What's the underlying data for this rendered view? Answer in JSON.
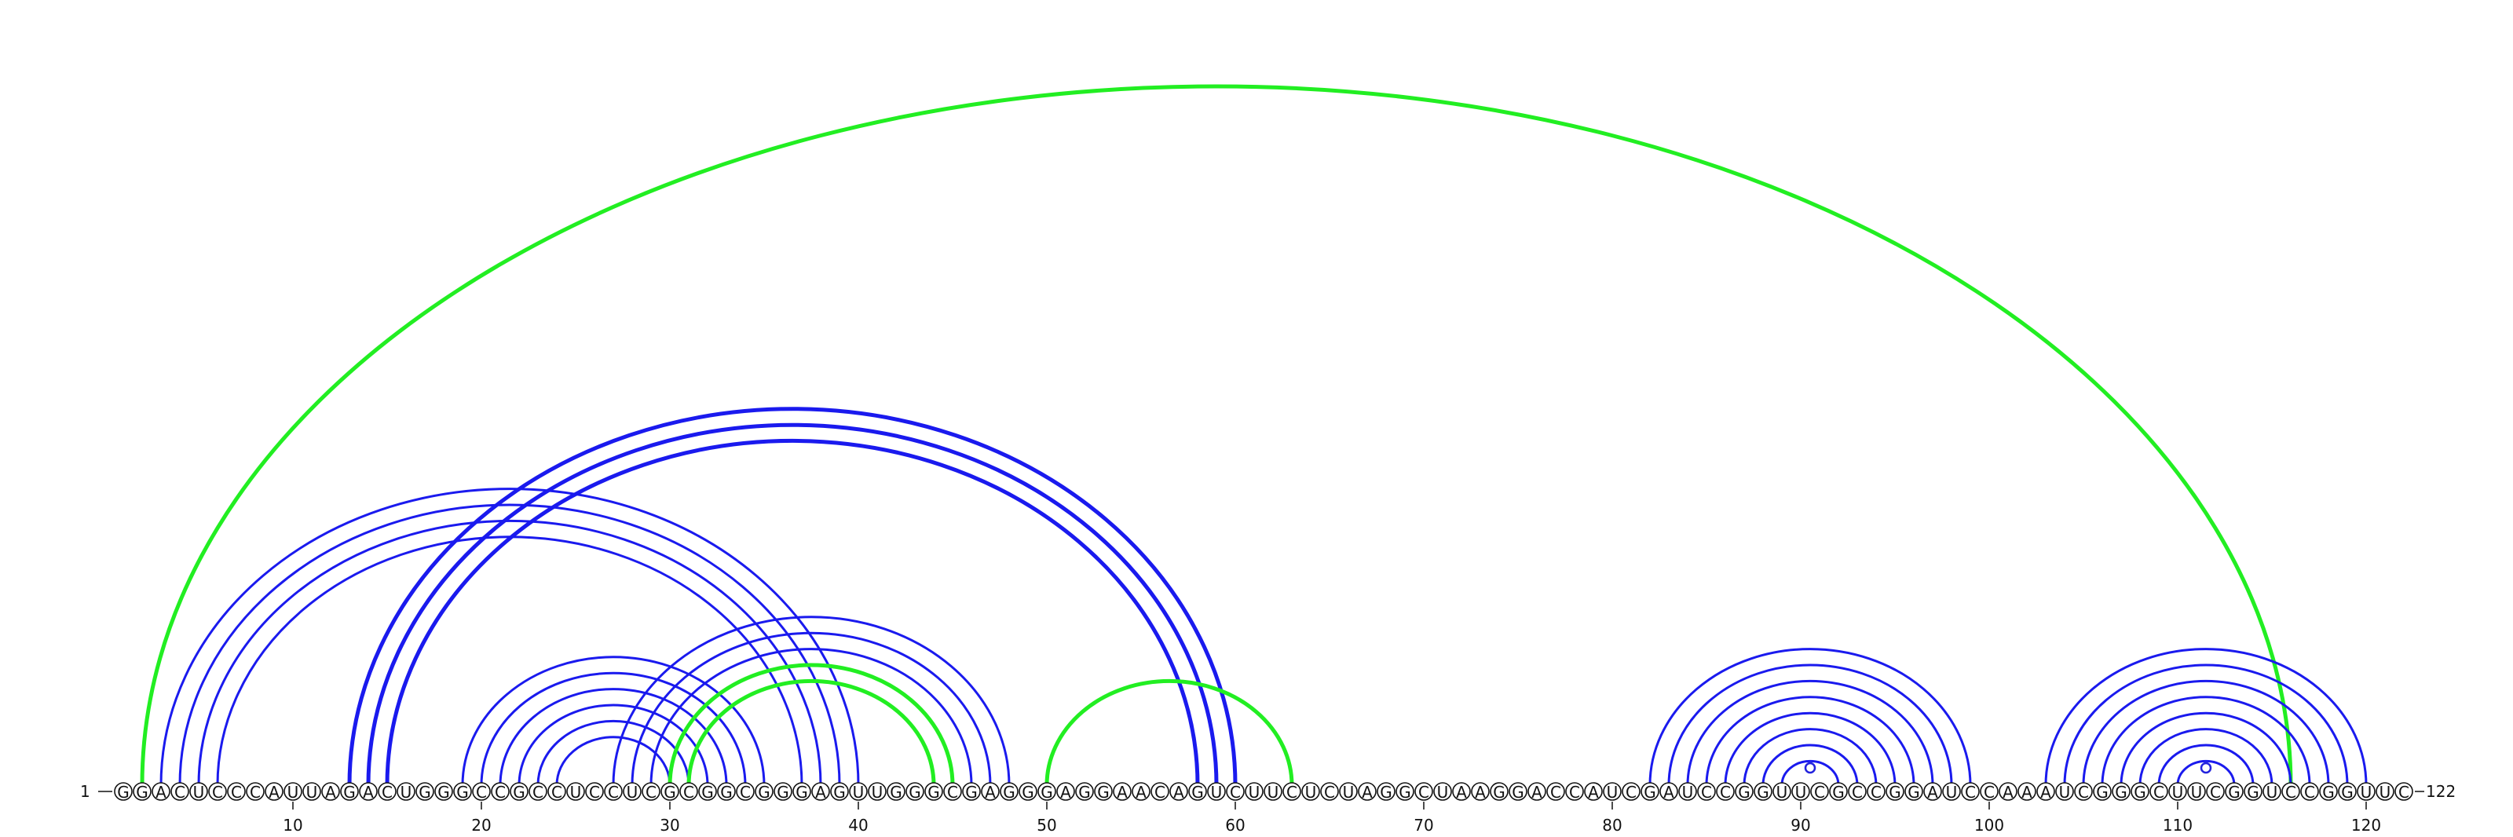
{
  "sequence": {
    "start_label": "1",
    "end_label": "122",
    "letters": "GGACUCCCAUUAGACUGGGCCGCCUCCUCGCGGCGGGAGUUGGGCGAGGGAGGAACAGUCUUCUCUAGGCUAAGGACCAUCGAUCCGGUUCGCCGGAUCCAAAUCGGGCUUCGGUCCGGUUC"
  },
  "axis": {
    "ticks": [
      {
        "pos": 10,
        "label": "10"
      },
      {
        "pos": 20,
        "label": "20"
      },
      {
        "pos": 30,
        "label": "30"
      },
      {
        "pos": 40,
        "label": "40"
      },
      {
        "pos": 50,
        "label": "50"
      },
      {
        "pos": 60,
        "label": "60"
      },
      {
        "pos": 70,
        "label": "70"
      },
      {
        "pos": 80,
        "label": "80"
      },
      {
        "pos": 90,
        "label": "90"
      },
      {
        "pos": 100,
        "label": "100"
      },
      {
        "pos": 110,
        "label": "110"
      },
      {
        "pos": 120,
        "label": "120"
      }
    ]
  },
  "colors": {
    "blue": "#1a1aee",
    "green": "#22ee22"
  },
  "arc_groups": [
    {
      "color": "green",
      "pairs": [
        [
          2,
          116
        ]
      ]
    },
    {
      "color": "blue",
      "pairs": [
        [
          3,
          40
        ],
        [
          4,
          39
        ],
        [
          5,
          38
        ],
        [
          6,
          37
        ]
      ]
    },
    {
      "color": "blue",
      "pairs": [
        [
          13,
          60
        ],
        [
          14,
          59
        ],
        [
          15,
          58
        ]
      ]
    },
    {
      "color": "blue",
      "pairs": [
        [
          19,
          35
        ],
        [
          20,
          34
        ],
        [
          21,
          33
        ],
        [
          22,
          32
        ],
        [
          23,
          31
        ],
        [
          24,
          30
        ]
      ]
    },
    {
      "color": "blue",
      "pairs": [
        [
          27,
          48
        ],
        [
          28,
          47
        ],
        [
          29,
          46
        ],
        [
          30,
          45
        ]
      ]
    },
    {
      "color": "green",
      "pairs": [
        [
          30,
          45
        ],
        [
          31,
          44
        ]
      ]
    },
    {
      "color": "green",
      "pairs": [
        [
          50,
          63
        ]
      ]
    },
    {
      "color": "blue",
      "pairs": [
        [
          82,
          99
        ],
        [
          83,
          98
        ],
        [
          84,
          97
        ],
        [
          85,
          96
        ],
        [
          86,
          95
        ],
        [
          87,
          94
        ],
        [
          88,
          93
        ],
        [
          89,
          92
        ]
      ]
    },
    {
      "color": "blue",
      "pairs": [
        [
          103,
          120
        ],
        [
          104,
          119
        ],
        [
          105,
          118
        ],
        [
          106,
          117
        ],
        [
          107,
          116
        ],
        [
          108,
          115
        ],
        [
          109,
          114
        ],
        [
          110,
          113
        ]
      ]
    }
  ],
  "markers": [
    {
      "between": [
        90,
        91
      ]
    },
    {
      "between": [
        111,
        112
      ]
    }
  ]
}
